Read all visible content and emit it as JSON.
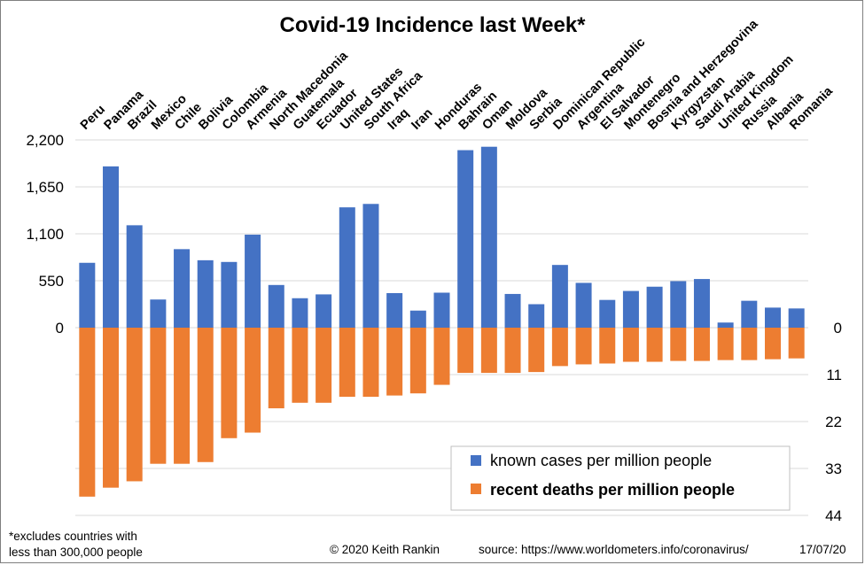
{
  "chart_data": {
    "type": "bar",
    "title": "Covid-19 Incidence last Week*",
    "categories": [
      "Peru",
      "Panama",
      "Brazil",
      "Mexico",
      "Chile",
      "Bolivia",
      "Colombia",
      "Armenia",
      "North Macedonia",
      "Guatemala",
      "Ecuador",
      "United States",
      "South Africa",
      "Iraq",
      "Iran",
      "Honduras",
      "Bahrain",
      "Oman",
      "Moldova",
      "Serbia",
      "Dominican Republic",
      "Argentina",
      "El Salvador",
      "Montenegro",
      "Bosnia and Herzegovina",
      "Kyrgyzstan",
      "Saudi Arabia",
      "United Kingdom",
      "Russia",
      "Albania",
      "Romania"
    ],
    "series": [
      {
        "name": "known cases per million people",
        "axis": "left",
        "values": [
          760,
          1890,
          1200,
          330,
          920,
          790,
          770,
          1090,
          500,
          345,
          390,
          1410,
          1450,
          405,
          200,
          410,
          2080,
          2120,
          395,
          275,
          735,
          525,
          325,
          430,
          480,
          545,
          570,
          60,
          315,
          235,
          225
        ]
      },
      {
        "name": "recent deaths per million people",
        "axis": "right",
        "values": [
          39.6,
          37.5,
          36.0,
          31.9,
          31.9,
          31.5,
          25.9,
          24.6,
          18.9,
          17.6,
          17.6,
          16.2,
          16.2,
          15.9,
          15.4,
          13.4,
          10.6,
          10.6,
          10.6,
          10.4,
          9.0,
          8.6,
          8.4,
          8.0,
          8.0,
          7.8,
          7.8,
          7.6,
          7.6,
          7.4,
          7.2
        ]
      }
    ],
    "y_left": {
      "min": 0,
      "max": 2200,
      "ticks": [
        0,
        550,
        1100,
        1650,
        2200
      ],
      "tick_labels": [
        "0",
        "550",
        "1,100",
        "1,650",
        "2,200"
      ]
    },
    "y_right": {
      "min": 0,
      "max": 44,
      "ticks": [
        0,
        11,
        22,
        33,
        44
      ],
      "tick_labels": [
        "0",
        "11",
        "22",
        "33",
        "44"
      ],
      "inverted": true
    },
    "grid": true,
    "legend_placement": "bottom-right",
    "colors": {
      "cases": "#4472c4",
      "deaths": "#ed7d31",
      "grid": "#d9d9d9"
    }
  },
  "footer": {
    "note_line1": "*excludes  countries with",
    "note_line2": "less than 300,000  people",
    "copyright": "© 2020  Keith  Rankin",
    "source": "source:  https://www.worldometers.info/coronavirus/",
    "date": "17/07/20"
  }
}
